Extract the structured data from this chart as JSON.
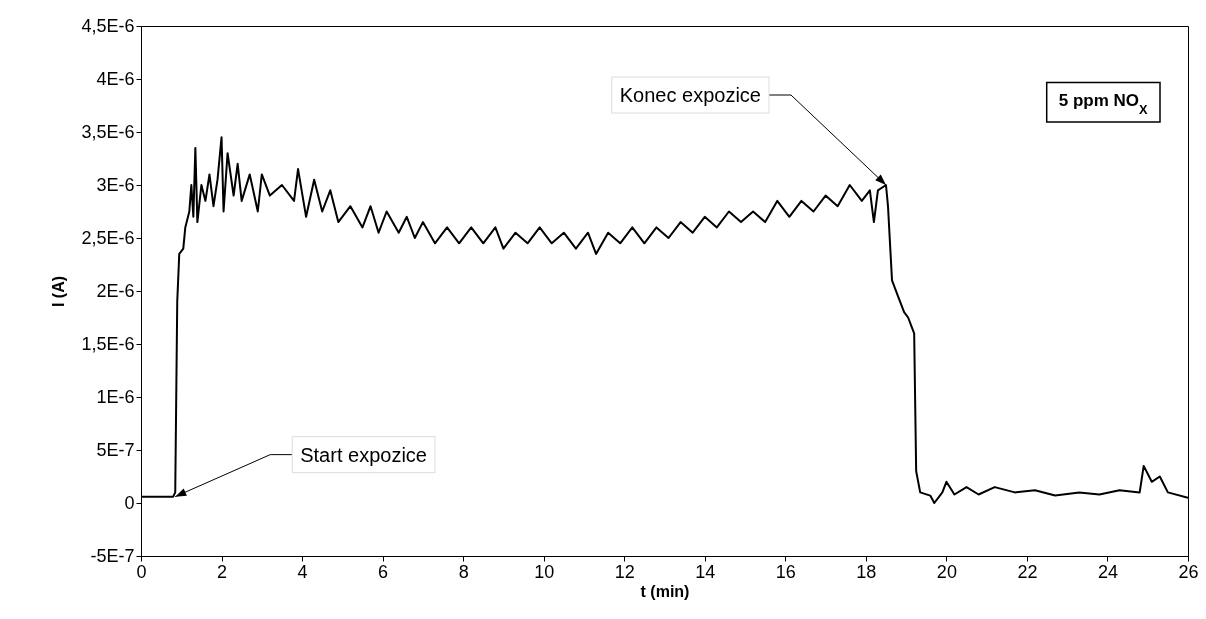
{
  "chart_data": {
    "type": "line",
    "xlabel": "t (min)",
    "ylabel": "I (A)",
    "xlim": [
      0,
      26
    ],
    "xticks": [
      0,
      2,
      4,
      6,
      8,
      10,
      12,
      14,
      16,
      18,
      20,
      22,
      24,
      26
    ],
    "ylim": [
      -5e-07,
      4.5e-06
    ],
    "yticks": [
      {
        "value": -5e-07,
        "label": "-5E-7"
      },
      {
        "value": 0,
        "label": "0"
      },
      {
        "value": 5e-07,
        "label": "5E-7"
      },
      {
        "value": 1e-06,
        "label": "1E-6"
      },
      {
        "value": 1.5e-06,
        "label": "1,5E-6"
      },
      {
        "value": 2e-06,
        "label": "2E-6"
      },
      {
        "value": 2.5e-06,
        "label": "2,5E-6"
      },
      {
        "value": 3e-06,
        "label": "3E-6"
      },
      {
        "value": 3.5e-06,
        "label": "3,5E-6"
      },
      {
        "value": 4e-06,
        "label": "4E-6"
      },
      {
        "value": 4.5e-06,
        "label": "4,5E-6"
      }
    ],
    "grid": false,
    "annotations": [
      {
        "text": "Start expozice",
        "x": 0.85,
        "y": 6e-08
      },
      {
        "text": "Konec expozice",
        "x": 18.5,
        "y": 3e-06
      },
      "5 ppm NO$_{X}$"
    ],
    "series": [
      {
        "color": "#000000",
        "x": [
          0,
          0.8,
          0.85,
          0.9,
          0.95,
          1.05,
          1.1,
          1.2,
          1.25,
          1.3,
          1.35,
          1.4,
          1.5,
          1.6,
          1.7,
          1.8,
          1.9,
          2.0,
          2.05,
          2.15,
          2.3,
          2.4,
          2.5,
          2.7,
          2.9,
          3.0,
          3.2,
          3.5,
          3.8,
          3.9,
          4.1,
          4.3,
          4.5,
          4.7,
          4.9,
          5.2,
          5.5,
          5.7,
          5.9,
          6.1,
          6.4,
          6.6,
          6.8,
          7.0,
          7.3,
          7.6,
          7.9,
          8.2,
          8.5,
          8.8,
          9.0,
          9.3,
          9.6,
          9.9,
          10.2,
          10.5,
          10.8,
          11.1,
          11.3,
          11.6,
          11.9,
          12.2,
          12.5,
          12.8,
          13.1,
          13.4,
          13.7,
          14.0,
          14.3,
          14.6,
          14.9,
          15.2,
          15.5,
          15.8,
          16.1,
          16.4,
          16.7,
          17.0,
          17.3,
          17.6,
          17.9,
          18.1,
          18.2,
          18.3,
          18.5,
          18.55,
          18.65,
          18.8,
          18.95,
          19.05,
          19.15,
          19.2,
          19.25,
          19.35,
          19.6,
          19.7,
          19.9,
          20.0,
          20.2,
          20.5,
          20.8,
          21.2,
          21.7,
          22.2,
          22.7,
          23.3,
          23.8,
          24.3,
          24.8,
          24.9,
          25.1,
          25.3,
          25.5,
          26
        ],
        "values": [
          6e-08,
          6e-08,
          1e-07,
          1.9e-06,
          2.35e-06,
          2.4e-06,
          2.6e-06,
          2.75e-06,
          3e-06,
          2.7e-06,
          3.35e-06,
          2.65e-06,
          3e-06,
          2.85e-06,
          3.1e-06,
          2.8e-06,
          3.05e-06,
          3.45e-06,
          2.75e-06,
          3.3e-06,
          2.9e-06,
          3.2e-06,
          2.85e-06,
          3.1e-06,
          2.75e-06,
          3.1e-06,
          2.9e-06,
          3e-06,
          2.85e-06,
          3.15e-06,
          2.7e-06,
          3.05e-06,
          2.75e-06,
          2.95e-06,
          2.65e-06,
          2.8e-06,
          2.6e-06,
          2.8e-06,
          2.55e-06,
          2.75e-06,
          2.55e-06,
          2.7e-06,
          2.5e-06,
          2.65e-06,
          2.45e-06,
          2.6e-06,
          2.45e-06,
          2.6e-06,
          2.45e-06,
          2.6e-06,
          2.4e-06,
          2.55e-06,
          2.45e-06,
          2.6e-06,
          2.45e-06,
          2.55e-06,
          2.4e-06,
          2.55e-06,
          2.35e-06,
          2.55e-06,
          2.45e-06,
          2.6e-06,
          2.45e-06,
          2.6e-06,
          2.5e-06,
          2.65e-06,
          2.55e-06,
          2.7e-06,
          2.6e-06,
          2.75e-06,
          2.65e-06,
          2.75e-06,
          2.65e-06,
          2.85e-06,
          2.7e-06,
          2.85e-06,
          2.75e-06,
          2.9e-06,
          2.8e-06,
          3e-06,
          2.85e-06,
          2.95e-06,
          2.65e-06,
          2.95e-06,
          3e-06,
          2.8e-06,
          2.1e-06,
          1.95e-06,
          1.8e-06,
          1.75e-06,
          1.65e-06,
          1.6e-06,
          3e-07,
          1e-07,
          7e-08,
          0,
          1e-07,
          2e-07,
          8e-08,
          1.5e-07,
          8e-08,
          1.5e-07,
          1e-07,
          1.2e-07,
          7e-08,
          1e-07,
          8e-08,
          1.2e-07,
          1e-07,
          3.5e-07,
          2e-07,
          2.5e-07,
          1e-07,
          5e-08
        ]
      }
    ]
  }
}
